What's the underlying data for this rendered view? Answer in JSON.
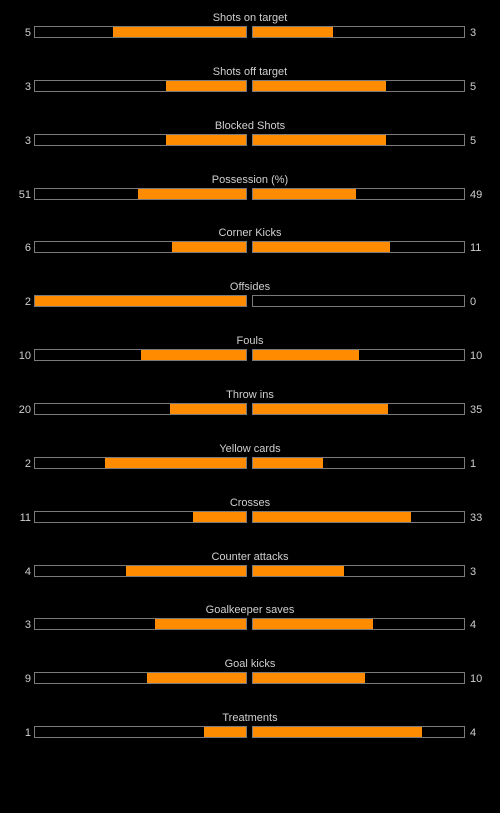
{
  "colors": {
    "background": "#000000",
    "bar_fill": "#ff8c00",
    "bar_border": "#7a7a7a",
    "text": "#cfcfcf"
  },
  "stats": [
    {
      "label": "Shots on target",
      "home": "5",
      "away": "3",
      "home_fill": 0.63,
      "away_fill": 0.38
    },
    {
      "label": "Shots off target",
      "home": "3",
      "away": "5",
      "home_fill": 0.38,
      "away_fill": 0.63
    },
    {
      "label": "Blocked Shots",
      "home": "3",
      "away": "5",
      "home_fill": 0.38,
      "away_fill": 0.63
    },
    {
      "label": "Possession (%)",
      "home": "51",
      "away": "49",
      "home_fill": 0.51,
      "away_fill": 0.49
    },
    {
      "label": "Corner Kicks",
      "home": "6",
      "away": "11",
      "home_fill": 0.35,
      "away_fill": 0.65
    },
    {
      "label": "Offsides",
      "home": "2",
      "away": "0",
      "home_fill": 1.0,
      "away_fill": 0.0
    },
    {
      "label": "Fouls",
      "home": "10",
      "away": "10",
      "home_fill": 0.5,
      "away_fill": 0.5
    },
    {
      "label": "Throw ins",
      "home": "20",
      "away": "35",
      "home_fill": 0.36,
      "away_fill": 0.64
    },
    {
      "label": "Yellow cards",
      "home": "2",
      "away": "1",
      "home_fill": 0.67,
      "away_fill": 0.33
    },
    {
      "label": "Crosses",
      "home": "11",
      "away": "33",
      "home_fill": 0.25,
      "away_fill": 0.75
    },
    {
      "label": "Counter attacks",
      "home": "4",
      "away": "3",
      "home_fill": 0.57,
      "away_fill": 0.43
    },
    {
      "label": "Goalkeeper saves",
      "home": "3",
      "away": "4",
      "home_fill": 0.43,
      "away_fill": 0.57
    },
    {
      "label": "Goal kicks",
      "home": "9",
      "away": "10",
      "home_fill": 0.47,
      "away_fill": 0.53
    },
    {
      "label": "Treatments",
      "home": "1",
      "away": "4",
      "home_fill": 0.2,
      "away_fill": 0.8
    }
  ]
}
